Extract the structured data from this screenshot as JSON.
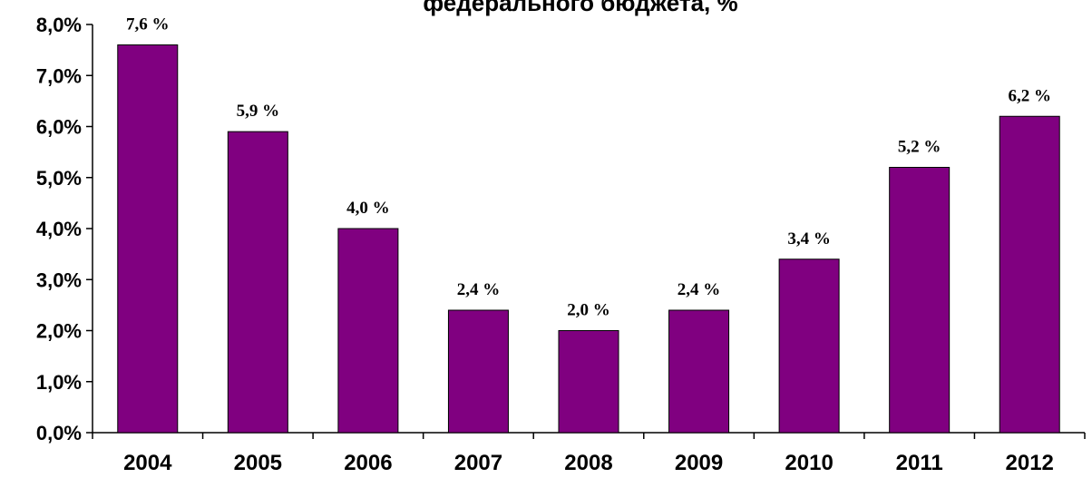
{
  "chart_data": {
    "type": "bar",
    "title": "федерального бюджета, %",
    "categories": [
      "2004",
      "2005",
      "2006",
      "2007",
      "2008",
      "2009",
      "2010",
      "2011",
      "2012"
    ],
    "values": [
      7.6,
      5.9,
      4.0,
      2.4,
      2.0,
      2.4,
      3.4,
      5.2,
      6.2
    ],
    "data_labels": [
      "7,6 %",
      "5,9 %",
      "4,0 %",
      "2,4 %",
      "2,0 %",
      "2,4 %",
      "3,4 %",
      "5,2 %",
      "6,2 %"
    ],
    "y_ticks": [
      "0,0%",
      "1,0%",
      "2,0%",
      "3,0%",
      "4,0%",
      "5,0%",
      "6,0%",
      "7,0%",
      "8,0%"
    ],
    "ylim": [
      0,
      8
    ],
    "bar_color": "#800080",
    "grid": false,
    "legend": "none"
  }
}
